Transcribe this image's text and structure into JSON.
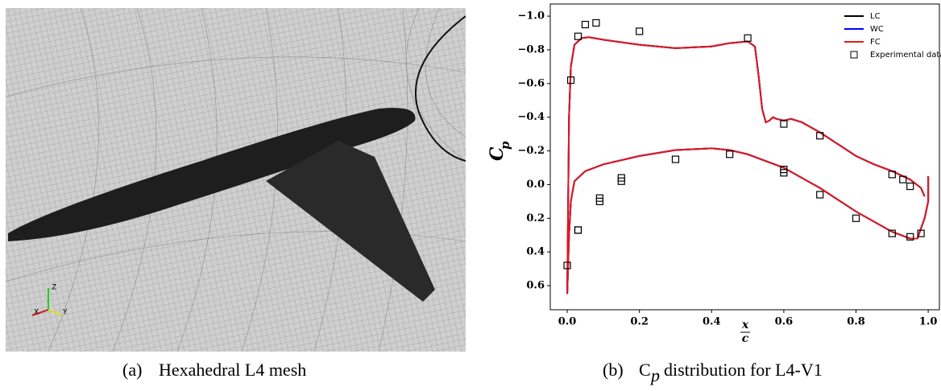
{
  "mesh": {
    "axes": [
      "Z",
      "X",
      "Y"
    ]
  },
  "caption_a": {
    "label": "(a)",
    "text": "Hexahedral L4 mesh"
  },
  "caption_b": {
    "label": "(b)",
    "text_before": "C",
    "subscript": "p",
    "text_after": "distribution for L4-V1"
  },
  "chart_data": {
    "type": "line",
    "ylabel": "C",
    "ylabel_subscript": "p",
    "xlabel_numerator": "x",
    "xlabel_denominator": "c",
    "xlim": [
      -0.047,
      1.031
    ],
    "ylim": [
      0.743,
      -1.072
    ],
    "xticks": [
      {
        "value": 0,
        "label": "0.0"
      },
      {
        "value": 0.2,
        "label": "0.2"
      },
      {
        "value": 0.4,
        "label": "0.4"
      },
      {
        "value": 0.6,
        "label": "0.6"
      },
      {
        "value": 0.8,
        "label": "0.8"
      },
      {
        "value": 1,
        "label": "1.0"
      }
    ],
    "yticks": [
      {
        "value": -1,
        "label": "−1.0"
      },
      {
        "value": -0.8,
        "label": "−0.8"
      },
      {
        "value": -0.6,
        "label": "−0.6"
      },
      {
        "value": -0.4,
        "label": "−0.4"
      },
      {
        "value": -0.2,
        "label": "−0.2"
      },
      {
        "value": 0,
        "label": "0.0"
      },
      {
        "value": 0.2,
        "label": "0.2"
      },
      {
        "value": 0.4,
        "label": "0.4"
      },
      {
        "value": 0.6,
        "label": "0.6"
      }
    ],
    "legend": "upper right",
    "series": [
      {
        "name": "LC",
        "color": "#000000",
        "marker": "line",
        "x": [
          1.0,
          1.0,
          0.99,
          0.97,
          0.95,
          0.9,
          0.8,
          0.7,
          0.6,
          0.5,
          0.45,
          0.4,
          0.3,
          0.2,
          0.1,
          0.05,
          0.02,
          0.01,
          0.005,
          0.0,
          0.005,
          0.01,
          0.02,
          0.04,
          0.06,
          0.1,
          0.2,
          0.3,
          0.4,
          0.45,
          0.5,
          0.52,
          0.53,
          0.54,
          0.55,
          0.56,
          0.57,
          0.58,
          0.6,
          0.62,
          0.65,
          0.7,
          0.75,
          0.8,
          0.85,
          0.9,
          0.95,
          0.98,
          0.99
        ],
        "values": [
          -0.05,
          0.1,
          0.2,
          0.32,
          0.32,
          0.28,
          0.16,
          0.02,
          -0.1,
          -0.18,
          -0.205,
          -0.215,
          -0.205,
          -0.17,
          -0.12,
          -0.08,
          -0.02,
          0.1,
          0.3,
          0.65,
          -0.4,
          -0.7,
          -0.83,
          -0.87,
          -0.875,
          -0.86,
          -0.83,
          -0.81,
          -0.82,
          -0.84,
          -0.85,
          -0.82,
          -0.65,
          -0.45,
          -0.37,
          -0.38,
          -0.4,
          -0.39,
          -0.38,
          -0.39,
          -0.37,
          -0.31,
          -0.24,
          -0.17,
          -0.12,
          -0.08,
          -0.03,
          0.02,
          0.07
        ]
      },
      {
        "name": "WC",
        "color": "#0000ff",
        "marker": "line",
        "x": [
          1.0,
          1.0,
          0.99,
          0.97,
          0.95,
          0.9,
          0.8,
          0.7,
          0.6,
          0.5,
          0.45,
          0.4,
          0.3,
          0.2,
          0.1,
          0.05,
          0.02,
          0.01,
          0.005,
          0.0,
          0.005,
          0.01,
          0.02,
          0.04,
          0.06,
          0.1,
          0.2,
          0.3,
          0.4,
          0.45,
          0.5,
          0.52,
          0.53,
          0.54,
          0.55,
          0.56,
          0.57,
          0.58,
          0.6,
          0.62,
          0.65,
          0.7,
          0.75,
          0.8,
          0.85,
          0.9,
          0.95,
          0.98,
          0.99
        ],
        "values": [
          -0.05,
          0.1,
          0.2,
          0.32,
          0.32,
          0.28,
          0.16,
          0.02,
          -0.1,
          -0.18,
          -0.205,
          -0.215,
          -0.205,
          -0.17,
          -0.12,
          -0.08,
          -0.02,
          0.1,
          0.3,
          0.65,
          -0.4,
          -0.7,
          -0.83,
          -0.87,
          -0.875,
          -0.86,
          -0.83,
          -0.81,
          -0.82,
          -0.84,
          -0.85,
          -0.82,
          -0.65,
          -0.45,
          -0.37,
          -0.38,
          -0.4,
          -0.39,
          -0.38,
          -0.39,
          -0.37,
          -0.31,
          -0.24,
          -0.17,
          -0.12,
          -0.08,
          -0.03,
          0.02,
          0.07
        ]
      },
      {
        "name": "FC",
        "color": "#e41a1c",
        "marker": "line",
        "x": [
          1.0,
          1.0,
          0.99,
          0.97,
          0.95,
          0.9,
          0.8,
          0.7,
          0.6,
          0.5,
          0.45,
          0.4,
          0.3,
          0.2,
          0.1,
          0.05,
          0.02,
          0.01,
          0.005,
          0.0,
          0.005,
          0.01,
          0.02,
          0.04,
          0.06,
          0.1,
          0.2,
          0.3,
          0.4,
          0.45,
          0.5,
          0.52,
          0.53,
          0.54,
          0.55,
          0.56,
          0.57,
          0.58,
          0.6,
          0.62,
          0.65,
          0.7,
          0.75,
          0.8,
          0.85,
          0.9,
          0.95,
          0.98,
          0.99
        ],
        "values": [
          -0.05,
          0.1,
          0.2,
          0.32,
          0.32,
          0.28,
          0.16,
          0.02,
          -0.1,
          -0.18,
          -0.205,
          -0.215,
          -0.205,
          -0.17,
          -0.12,
          -0.08,
          -0.02,
          0.1,
          0.3,
          0.65,
          -0.4,
          -0.7,
          -0.83,
          -0.87,
          -0.875,
          -0.86,
          -0.83,
          -0.81,
          -0.82,
          -0.84,
          -0.85,
          -0.82,
          -0.65,
          -0.45,
          -0.37,
          -0.38,
          -0.4,
          -0.39,
          -0.38,
          -0.39,
          -0.37,
          -0.31,
          -0.24,
          -0.17,
          -0.12,
          -0.08,
          -0.03,
          0.02,
          0.07
        ]
      },
      {
        "name": "Experimental data",
        "color": "#000000",
        "marker": "square",
        "x": [
          0.0,
          0.01,
          0.03,
          0.05,
          0.08,
          0.2,
          0.5,
          0.03,
          0.03,
          0.09,
          0.09,
          0.15,
          0.15,
          0.3,
          0.45,
          0.6,
          0.6,
          0.6,
          0.7,
          0.7,
          0.8,
          0.9,
          0.9,
          0.93,
          0.95,
          0.95,
          0.98
        ],
        "values": [
          0.48,
          -0.62,
          -0.88,
          -0.95,
          -0.96,
          -0.91,
          -0.87,
          0.27,
          0.27,
          0.08,
          0.1,
          -0.04,
          -0.02,
          -0.15,
          -0.18,
          -0.09,
          -0.07,
          -0.36,
          -0.29,
          0.06,
          0.2,
          -0.06,
          0.29,
          -0.03,
          0.01,
          0.31,
          0.29
        ]
      }
    ]
  }
}
